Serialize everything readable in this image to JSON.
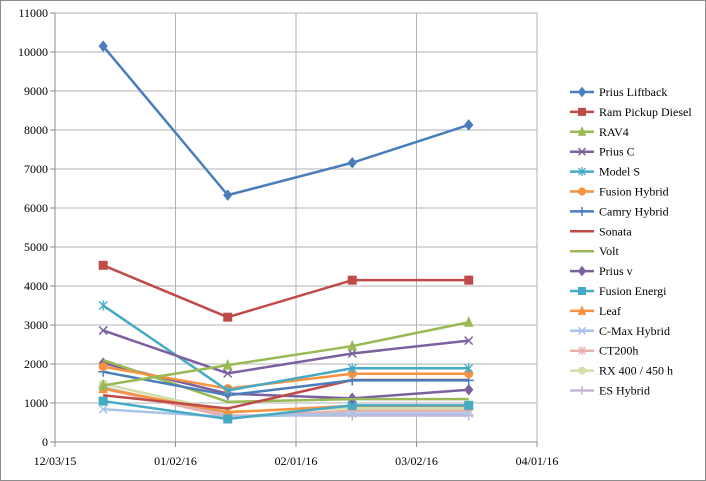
{
  "chart_data": {
    "type": "line",
    "title": "",
    "xlabel": "",
    "ylabel": "",
    "x_ticks": [
      "12/03/15",
      "01/02/16",
      "02/01/16",
      "03/02/16",
      "04/01/16"
    ],
    "y_ticks": [
      "0",
      "1000",
      "2000",
      "3000",
      "4000",
      "5000",
      "6000",
      "7000",
      "8000",
      "9000",
      "10000",
      "11000"
    ],
    "ylim": [
      0,
      11000
    ],
    "xlim": [
      "2015-12-03",
      "2016-04-01"
    ],
    "x": [
      "2015-12-15",
      "2016-01-15",
      "2016-02-15",
      "2016-03-15"
    ],
    "grid": true,
    "legend_position": "right",
    "series": [
      {
        "name": "Prius Liftback",
        "color": "#4a7ebb",
        "marker": "diamond",
        "values": [
          10150,
          6330,
          7160,
          8130
        ]
      },
      {
        "name": "Ram Pickup Diesel",
        "color": "#be4b48",
        "marker": "square",
        "values": [
          4530,
          3200,
          4150,
          4150
        ]
      },
      {
        "name": "RAV4",
        "color": "#98b954",
        "marker": "triangle",
        "values": [
          1450,
          1970,
          2460,
          3070
        ]
      },
      {
        "name": "Prius C",
        "color": "#7d60a0",
        "marker": "x",
        "values": [
          2860,
          1760,
          2270,
          2600
        ]
      },
      {
        "name": "Model S",
        "color": "#46aac5",
        "marker": "star",
        "values": [
          3500,
          1320,
          1890,
          1890
        ]
      },
      {
        "name": "Fusion Hybrid",
        "color": "#f69240",
        "marker": "circle",
        "values": [
          1930,
          1370,
          1750,
          1750
        ]
      },
      {
        "name": "Camry Hybrid",
        "color": "#4a7ebb",
        "marker": "plus",
        "values": [
          1800,
          1200,
          1580,
          1580
        ]
      },
      {
        "name": "Sonata",
        "color": "#be4b48",
        "marker": "none",
        "values": [
          1200,
          860,
          1590,
          1590
        ]
      },
      {
        "name": "Volt",
        "color": "#98b954",
        "marker": "none",
        "values": [
          2100,
          1030,
          1100,
          1100
        ]
      },
      {
        "name": "Prius v",
        "color": "#7d60a0",
        "marker": "diamond",
        "values": [
          2020,
          1240,
          1120,
          1340
        ]
      },
      {
        "name": "Fusion Energi",
        "color": "#46aac5",
        "marker": "square",
        "values": [
          1050,
          590,
          940,
          940
        ]
      },
      {
        "name": "Leaf",
        "color": "#f69240",
        "marker": "triangle",
        "values": [
          1370,
          760,
          930,
          930
        ]
      },
      {
        "name": "C-Max Hybrid",
        "color": "#a9c4e9",
        "marker": "x",
        "values": [
          840,
          640,
          730,
          730
        ]
      },
      {
        "name": "CT200h",
        "color": "#e6b0ae",
        "marker": "star",
        "values": [
          1370,
          650,
          800,
          800
        ]
      },
      {
        "name": "RX 400 / 450 h",
        "color": "#d2dfa9",
        "marker": "circle",
        "values": [
          1490,
          780,
          870,
          870
        ]
      },
      {
        "name": "ES Hybrid",
        "color": "#c3b6d6",
        "marker": "plus",
        "values": [
          1400,
          680,
          680,
          680
        ]
      }
    ]
  }
}
